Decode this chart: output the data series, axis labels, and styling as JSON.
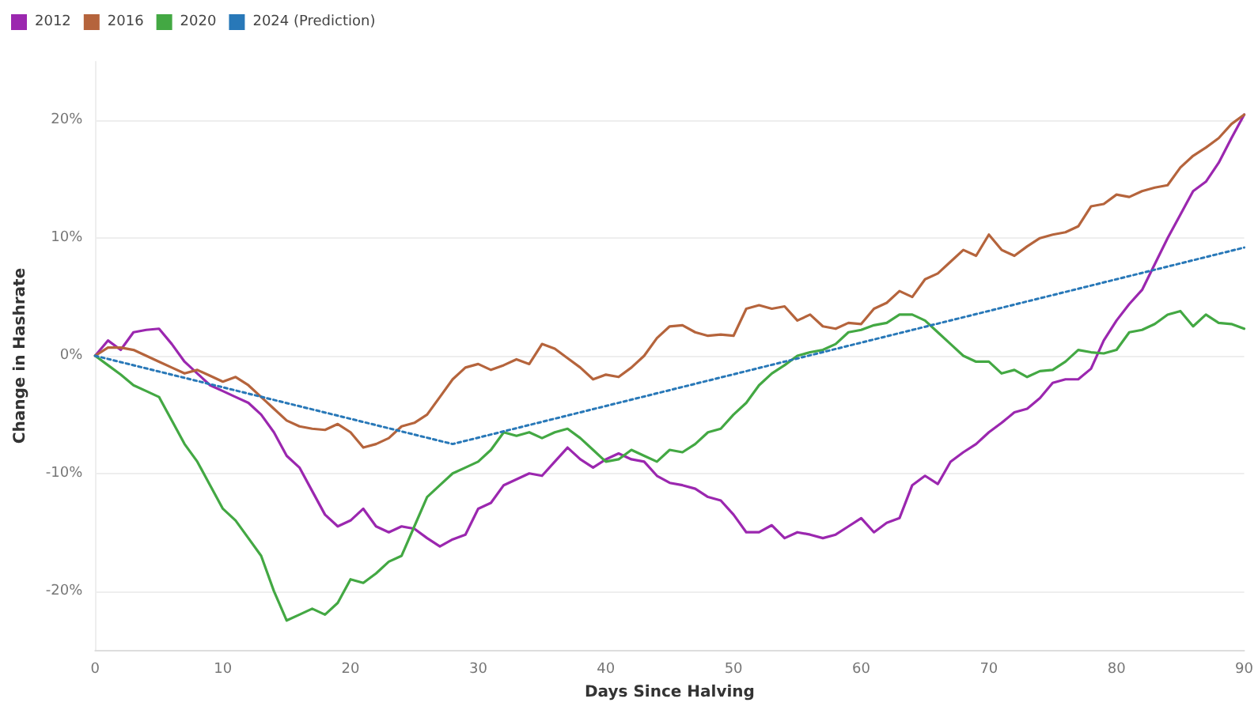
{
  "chart_data": {
    "type": "line",
    "xlabel": "Days Since Halving",
    "ylabel": "Change in Hashrate",
    "xlim": [
      0,
      90
    ],
    "xticks": [
      0,
      10,
      20,
      30,
      40,
      50,
      60,
      70,
      80,
      90
    ],
    "ylim": [
      -25,
      25
    ],
    "yticks": [
      {
        "value": -20,
        "label": "-20%"
      },
      {
        "value": -10,
        "label": "-10%"
      },
      {
        "value": 0,
        "label": "0%"
      },
      {
        "value": 10,
        "label": "10%"
      },
      {
        "value": 20,
        "label": "20%"
      }
    ],
    "grid": "y",
    "legend": "top left",
    "marker": "none",
    "x": [
      0,
      1,
      2,
      3,
      4,
      5,
      6,
      7,
      8,
      9,
      10,
      11,
      12,
      13,
      14,
      15,
      16,
      17,
      18,
      19,
      20,
      21,
      22,
      23,
      24,
      25,
      26,
      27,
      28,
      29,
      30,
      31,
      32,
      33,
      34,
      35,
      36,
      37,
      38,
      39,
      40,
      41,
      42,
      43,
      44,
      45,
      46,
      47,
      48,
      49,
      50,
      51,
      52,
      53,
      54,
      55,
      56,
      57,
      58,
      59,
      60,
      61,
      62,
      63,
      64,
      65,
      66,
      67,
      68,
      69,
      70,
      71,
      72,
      73,
      74,
      75,
      76,
      77,
      78,
      79,
      80,
      81,
      82,
      83,
      84,
      85,
      86,
      87,
      88,
      89,
      90
    ],
    "series": [
      {
        "name": "2012",
        "color": "#9b27af",
        "values": [
          0,
          1.3,
          0.5,
          2,
          2.2,
          2.3,
          1,
          -0.5,
          -1.5,
          -2.5,
          -3,
          -3.5,
          -4,
          -5,
          -6.5,
          -8.5,
          -9.5,
          -11.5,
          -13.5,
          -14.5,
          -14,
          -13,
          -14.5,
          -15,
          -14.5,
          -14.7,
          -15.5,
          -16.2,
          -15.6,
          -15.2,
          -13,
          -12.5,
          -11,
          -10.5,
          -10,
          -10.2,
          -9,
          -7.8,
          -8.8,
          -9.5,
          -8.8,
          -8.3,
          -8.8,
          -9,
          -10.2,
          -10.8,
          -11,
          -11.3,
          -12,
          -12.3,
          -13.5,
          -15,
          -15,
          -14.4,
          -15.5,
          -15,
          -15.2,
          -15.5,
          -15.2,
          -14.5,
          -13.8,
          -15,
          -14.2,
          -13.8,
          -11,
          -10.2,
          -10.9,
          -9,
          -8.2,
          -7.5,
          -6.5,
          -5.7,
          -4.8,
          -4.5,
          -3.6,
          -2.3,
          -2,
          -2,
          -1.1,
          1.3,
          3,
          4.4,
          5.6,
          7.8,
          10,
          12,
          14,
          14.8,
          16.4,
          18.5,
          20.5
        ]
      },
      {
        "name": "2016",
        "color": "#b5643c",
        "values": [
          0,
          0.7,
          0.7,
          0.5,
          0,
          -0.5,
          -1,
          -1.5,
          -1.2,
          -1.7,
          -2.2,
          -1.8,
          -2.5,
          -3.5,
          -4.5,
          -5.5,
          -6,
          -6.2,
          -6.3,
          -5.8,
          -6.5,
          -7.8,
          -7.5,
          -7,
          -6,
          -5.7,
          -5,
          -3.5,
          -2,
          -1,
          -0.7,
          -1.2,
          -0.8,
          -0.3,
          -0.7,
          1,
          0.6,
          -0.2,
          -1,
          -2,
          -1.6,
          -1.8,
          -1,
          0,
          1.5,
          2.5,
          2.6,
          2,
          1.7,
          1.8,
          1.7,
          4,
          4.3,
          4,
          4.2,
          3,
          3.5,
          2.5,
          2.3,
          2.8,
          2.7,
          4,
          4.5,
          5.5,
          5,
          6.5,
          7,
          8,
          9,
          8.5,
          10.3,
          9,
          8.5,
          9.3,
          10,
          10.3,
          10.5,
          11,
          12.7,
          12.9,
          13.7,
          13.5,
          14,
          14.3,
          14.5,
          16,
          17,
          17.7,
          18.5,
          19.7,
          20.5
        ]
      },
      {
        "name": "2020",
        "color": "#43a843",
        "values": [
          0,
          -0.8,
          -1.6,
          -2.5,
          -3,
          -3.5,
          -5.5,
          -7.5,
          -9,
          -11,
          -13,
          -14,
          -15.5,
          -17,
          -20,
          -22.5,
          -22,
          -21.5,
          -22,
          -21,
          -19,
          -19.3,
          -18.5,
          -17.5,
          -17,
          -14.5,
          -12,
          -11,
          -10,
          -9.5,
          -9,
          -8,
          -6.5,
          -6.8,
          -6.5,
          -7,
          -6.5,
          -6.2,
          -7,
          -8,
          -9,
          -8.8,
          -8,
          -8.5,
          -9,
          -8,
          -8.2,
          -7.5,
          -6.5,
          -6.2,
          -5,
          -4,
          -2.5,
          -1.5,
          -0.8,
          0,
          0.3,
          0.5,
          1,
          2,
          2.2,
          2.6,
          2.8,
          3.5,
          3.5,
          3,
          2,
          1,
          0,
          -0.5,
          -0.5,
          -1.5,
          -1.2,
          -1.8,
          -1.3,
          -1.2,
          -0.5,
          0.5,
          0.3,
          0.2,
          0.5,
          2,
          2.2,
          2.7,
          3.5,
          3.8,
          2.5,
          3.5,
          2.8,
          2.7,
          2.3
        ]
      },
      {
        "name": "2024 (Prediction)",
        "color": "#2878b8",
        "line_style": "dotted",
        "x": [
          0,
          28,
          90
        ],
        "values": [
          0,
          -7.5,
          9.2
        ]
      }
    ]
  }
}
